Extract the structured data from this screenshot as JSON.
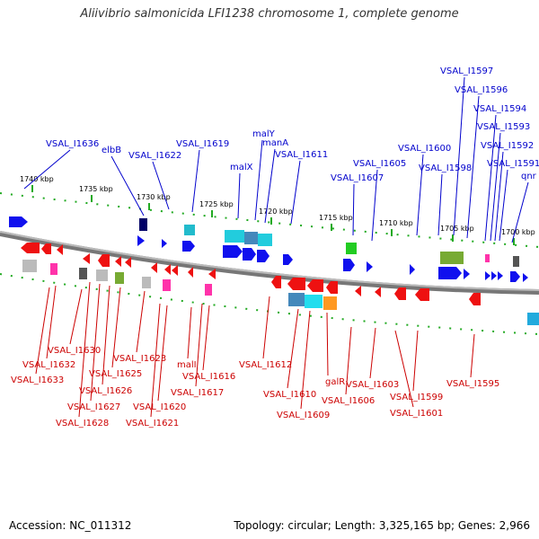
{
  "title": "Aliivibrio salmonicida LFI1238 chromosome 1, complete genome",
  "footer": {
    "accession": "Accession: NC_011312",
    "topology": "Topology: circular; Length: 3,325,165 bp; Genes: 2,966"
  },
  "colors": {
    "backbone": "#888888",
    "forward_label": "#0000cc",
    "reverse_label": "#cc0000",
    "forward_gene": "#0000ee",
    "reverse_gene": "#ee0000",
    "tick": "#22aa22"
  },
  "scale_ticks": [
    "1740 kbp",
    "1735 kbp",
    "1730 kbp",
    "1725 kbp",
    "1720 kbp",
    "1715 kbp",
    "1710 kbp",
    "1705 kbp",
    "1700 kbp"
  ],
  "forward_labels": [
    "VSAL_I1597",
    "VSAL_I1596",
    "VSAL_I1594",
    "VSAL_I1593",
    "VSAL_I1592",
    "VSAL_I1591",
    "qnr",
    "malY",
    "manA",
    "VSAL_I1636",
    "elbB",
    "VSAL_I1619",
    "VSAL_I1622",
    "VSAL_I1611",
    "malX",
    "VSAL_I1600",
    "VSAL_I1605",
    "VSAL_I1598",
    "VSAL_I1607"
  ],
  "reverse_labels": [
    "VSAL_I1630",
    "VSAL_I1632",
    "VSAL_I1633",
    "VSAL_I1623",
    "VSAL_I1625",
    "VSAL_I1626",
    "VSAL_I1627",
    "VSAL_I1628",
    "malI",
    "VSAL_I1616",
    "VSAL_I1617",
    "VSAL_I1620",
    "VSAL_I1621",
    "VSAL_I1612",
    "galR",
    "VSAL_I1610",
    "VSAL_I1609",
    "VSAL_I1603",
    "VSAL_I1606",
    "VSAL_I1601",
    "VSAL_I1599",
    "VSAL_I1595"
  ]
}
